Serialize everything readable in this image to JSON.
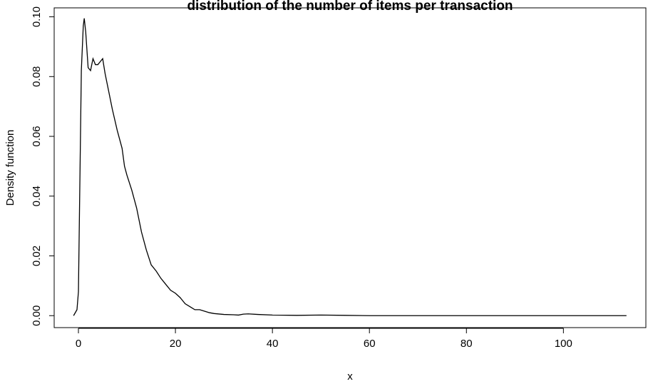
{
  "chart_data": {
    "type": "line",
    "title": "distribution of the number of items per transaction",
    "xlabel": "x",
    "ylabel": "Density function",
    "xlim": [
      -5,
      117
    ],
    "ylim": [
      -0.004,
      0.103
    ],
    "x_ticks": [
      0,
      20,
      40,
      60,
      80,
      100
    ],
    "y_ticks": [
      0.0,
      0.02,
      0.04,
      0.06,
      0.08,
      0.1
    ],
    "x_tick_labels": [
      "0",
      "20",
      "40",
      "60",
      "80",
      "100"
    ],
    "y_tick_labels": [
      "0.00",
      "0.02",
      "0.04",
      "0.06",
      "0.08",
      "0.10"
    ],
    "grid": false,
    "series": [
      {
        "x": [
          -1,
          -0.3,
          0,
          0.3,
          0.6,
          1.0,
          1.2,
          1.5,
          2.0,
          2.5,
          3.0,
          3.5,
          4.0,
          4.5,
          5.0,
          5.5,
          6.0,
          7.0,
          8.0,
          9.0,
          9.5,
          10.0,
          11.0,
          12.0,
          13.0,
          14.0,
          15.0,
          16.0,
          17.0,
          18.0,
          19.0,
          20.0,
          21.0,
          22.0,
          23.0,
          24.0,
          25.0,
          26.0,
          27.0,
          28.0,
          30.0,
          32.0,
          33.0,
          34.0,
          35.0,
          37.0,
          40.0,
          45.0,
          50.0,
          55.0,
          60.0,
          80.0,
          100.0,
          113.0
        ],
        "y": [
          0.0,
          0.002,
          0.008,
          0.045,
          0.082,
          0.097,
          0.0995,
          0.095,
          0.083,
          0.082,
          0.086,
          0.084,
          0.084,
          0.085,
          0.086,
          0.081,
          0.077,
          0.069,
          0.062,
          0.056,
          0.05,
          0.047,
          0.042,
          0.036,
          0.028,
          0.022,
          0.017,
          0.015,
          0.0125,
          0.0105,
          0.0085,
          0.0075,
          0.006,
          0.004,
          0.003,
          0.002,
          0.002,
          0.0015,
          0.001,
          0.0007,
          0.0004,
          0.0003,
          0.0002,
          0.0005,
          0.0006,
          0.0004,
          0.0002,
          0.0001,
          0.0002,
          0.0001,
          0.0,
          0.0,
          0.0,
          0.0
        ]
      }
    ]
  }
}
